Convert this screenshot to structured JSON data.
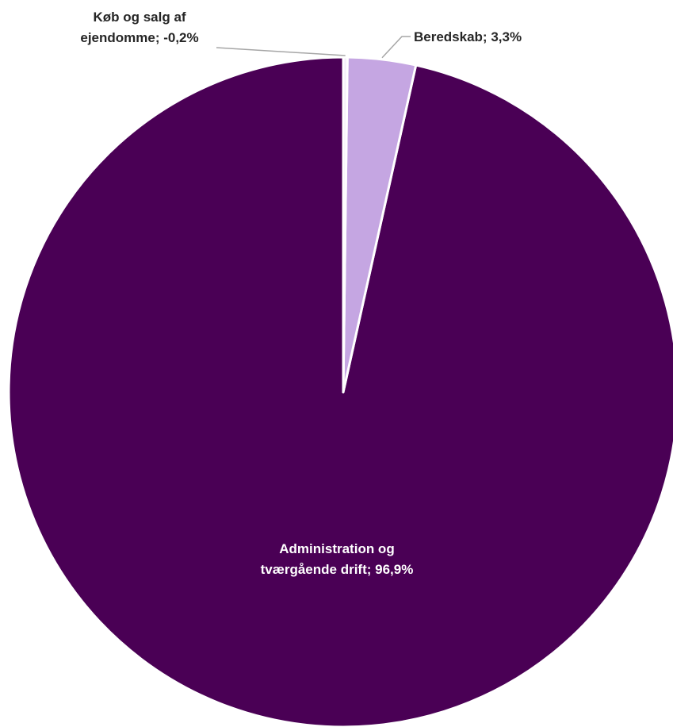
{
  "chart_data": {
    "type": "pie",
    "title": "",
    "categories": [
      "Køb og salg af ejendomme",
      "Beredskab",
      "Administration og tværgående drift"
    ],
    "values": [
      -0.2,
      3.3,
      96.9
    ],
    "data_labels": [
      [
        "Køb og salg af",
        "ejendomme; -0,2%"
      ],
      [
        "Beredskab; 3,3%"
      ],
      [
        "Administration og",
        "tværgående drift; 96,9%"
      ]
    ],
    "colors": [
      "#f4eef9",
      "#c5a6e2",
      "#4a0055"
    ],
    "label_colors": [
      "#262626",
      "#262626",
      "#ffffff"
    ],
    "slice_border_color": "#ffffff",
    "leader_line_color": "#a6a6a6",
    "start_angle_deg": 0,
    "direction": "clockwise",
    "legend": "none"
  }
}
